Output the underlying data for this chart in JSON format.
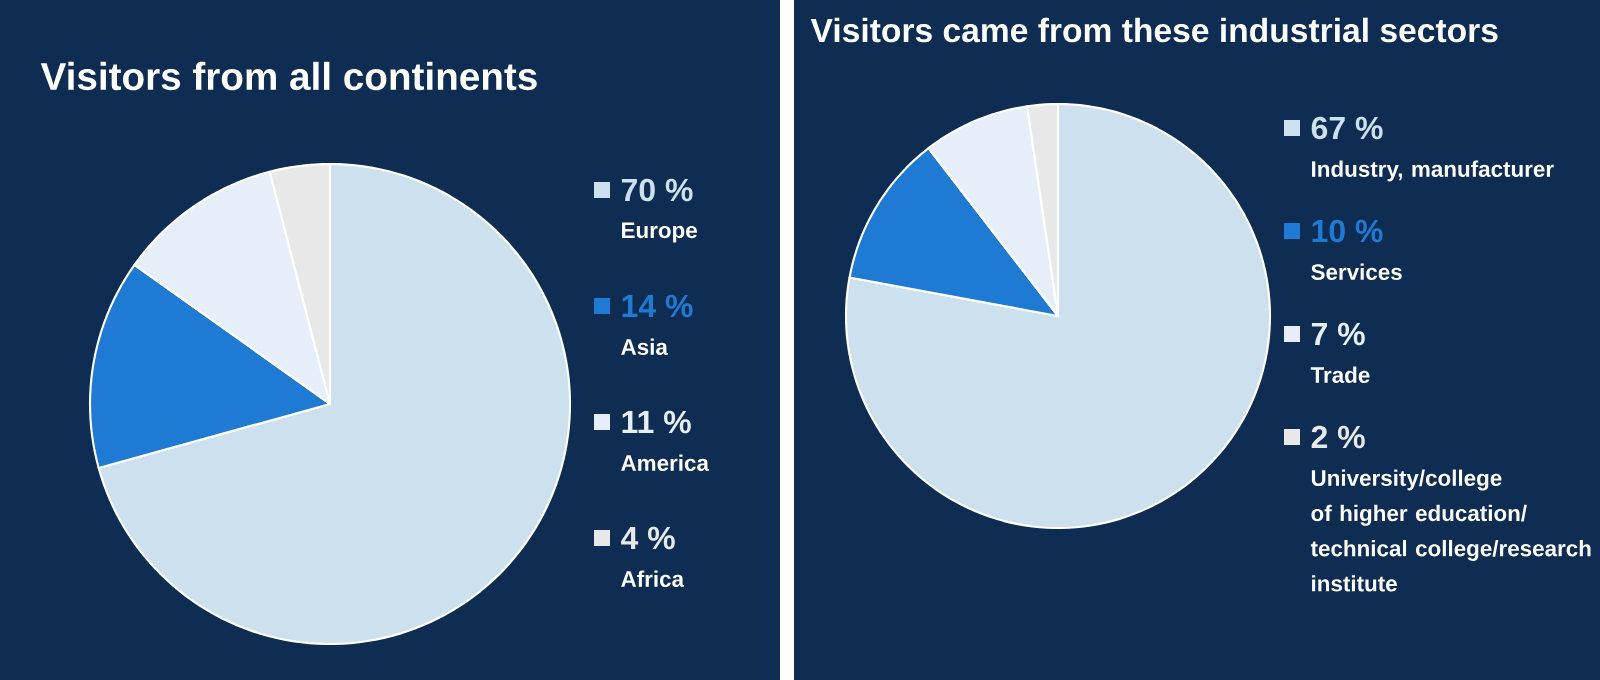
{
  "chart_data": [
    {
      "type": "pie",
      "title": "Visitors from all continents",
      "categories": [
        "Europe",
        "Asia",
        "America",
        "Africa"
      ],
      "values": [
        70,
        14,
        11,
        4
      ],
      "value_labels": [
        "70 %",
        "14 %",
        "11 %",
        "4 %"
      ],
      "colors": [
        "#cde0ee",
        "#1e7ad3",
        "#e6eff9",
        "#e8e8e8"
      ],
      "legend": "right"
    },
    {
      "type": "pie",
      "title": "Visitors came from these industrial sectors",
      "categories": [
        "Industry, manufacturer",
        "Services",
        "Trade",
        "University/college of higher education/ technical college/research institute"
      ],
      "values": [
        67,
        10,
        7,
        2
      ],
      "value_labels": [
        "67 %",
        "10 %",
        "7 %",
        "2 %"
      ],
      "colors": [
        "#cde0ee",
        "#1e7ad3",
        "#e6eff9",
        "#e8e8e8"
      ],
      "legend": "right"
    }
  ]
}
